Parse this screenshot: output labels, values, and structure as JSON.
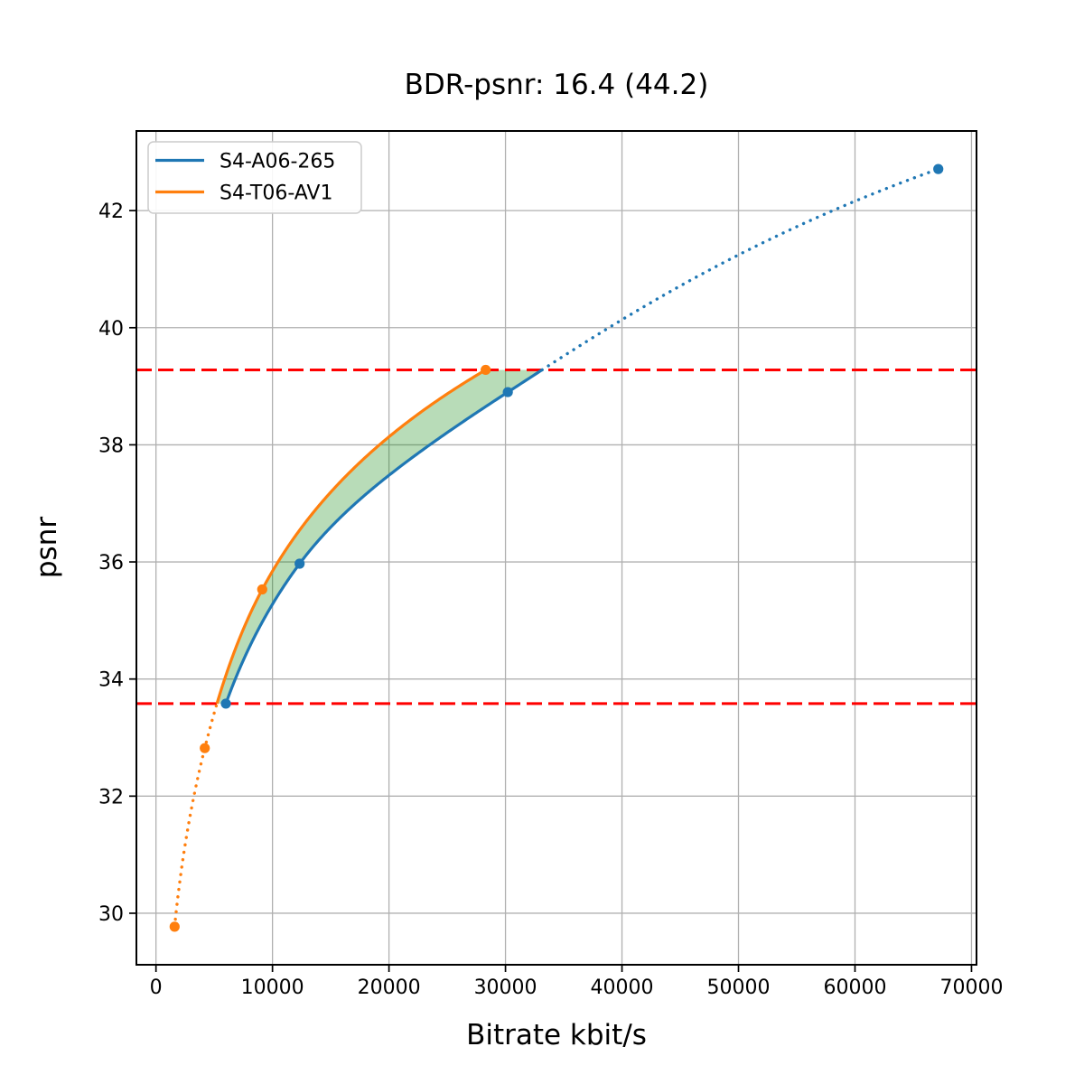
{
  "chart_data": {
    "type": "line",
    "title": "BDR-psnr: 16.4 (44.2)",
    "xlabel": "Bitrate kbit/s",
    "ylabel": "psnr",
    "xlim": [
      -1680,
      70430
    ],
    "ylim": [
      29.12,
      43.36
    ],
    "x_ticks": [
      0,
      10000,
      20000,
      30000,
      40000,
      50000,
      60000,
      70000
    ],
    "y_ticks": [
      30,
      32,
      34,
      36,
      38,
      40,
      42
    ],
    "grid": true,
    "legend": {
      "position": "upper left"
    },
    "series": [
      {
        "name": "S4-A06-265",
        "color": "#1f77b4",
        "marker": "circle",
        "points": [
          [
            6000,
            33.58
          ],
          [
            12330,
            35.97
          ],
          [
            30200,
            38.9
          ],
          [
            67150,
            42.71
          ]
        ]
      },
      {
        "name": "S4-T06-AV1",
        "color": "#ff7f0e",
        "marker": "circle",
        "points": [
          [
            1600,
            29.77
          ],
          [
            4190,
            32.82
          ],
          [
            9120,
            35.53
          ],
          [
            28300,
            39.28
          ]
        ]
      }
    ],
    "line_style_rule": "solid inside overlap psnr range, dotted outside",
    "overlap_psnr_range": [
      33.58,
      39.28
    ],
    "reference_lines": {
      "color": "#ff0000",
      "style": "dashed",
      "y_values": [
        33.58,
        39.28
      ]
    },
    "shaded_region": {
      "between": [
        "S4-T06-AV1",
        "S4-A06-265"
      ],
      "y_range": [
        33.58,
        39.28
      ],
      "color": "#008000",
      "alpha": 0.28
    },
    "colors": {
      "grid": "#b0b0b0",
      "spine": "#000000",
      "legend_border": "#cccccc",
      "background": "#ffffff"
    }
  }
}
